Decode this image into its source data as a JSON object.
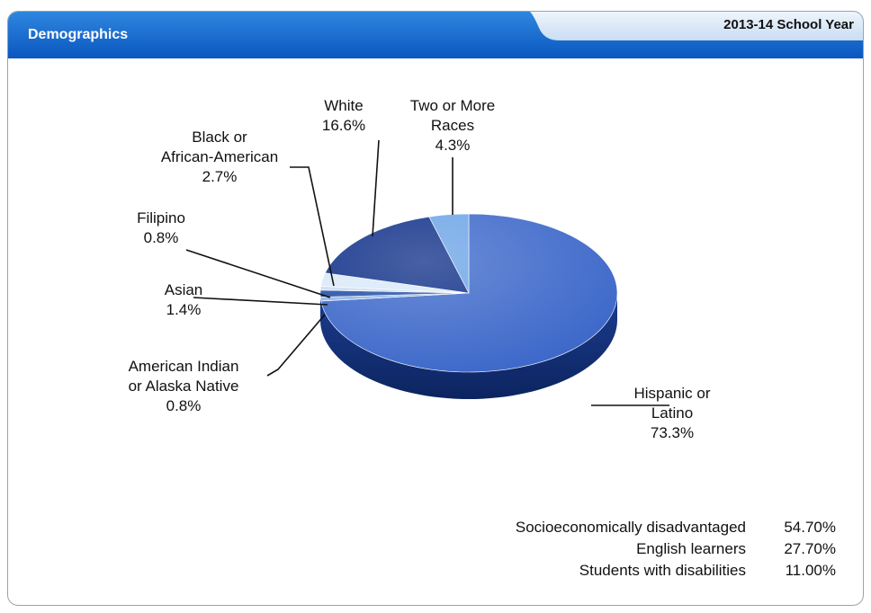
{
  "header": {
    "title": "Demographics",
    "school_year": "2013-14 School Year"
  },
  "chart_data": {
    "type": "pie",
    "slices": [
      {
        "label": [
          "Hispanic or",
          "Latino"
        ],
        "value": 73.3,
        "value_text": "73.3%",
        "color": "#3a66c9"
      },
      {
        "label": [
          "American Indian",
          "or Alaska Native"
        ],
        "value": 0.8,
        "value_text": "0.8%",
        "color": "#8fb3e8"
      },
      {
        "label": [
          "Asian"
        ],
        "value": 1.4,
        "value_text": "1.4%",
        "color": "#1f4ba0"
      },
      {
        "label": [
          "Filipino"
        ],
        "value": 0.8,
        "value_text": "0.8%",
        "color": "#c8dcf5"
      },
      {
        "label": [
          "Black or",
          "African-American"
        ],
        "value": 2.7,
        "value_text": "2.7%",
        "color": "#d9e8f8"
      },
      {
        "label": [
          "White"
        ],
        "value": 16.6,
        "value_text": "16.6%",
        "color": "#0b2c86"
      },
      {
        "label": [
          "Two or More",
          "Races"
        ],
        "value": 4.3,
        "value_text": "4.3%",
        "color": "#6aa3e6"
      }
    ]
  },
  "stats": [
    {
      "name": "Socioeconomically disadvantaged",
      "value": "54.70%"
    },
    {
      "name": "English learners",
      "value": "27.70%"
    },
    {
      "name": "Students with disabilities",
      "value": "11.00%"
    }
  ]
}
